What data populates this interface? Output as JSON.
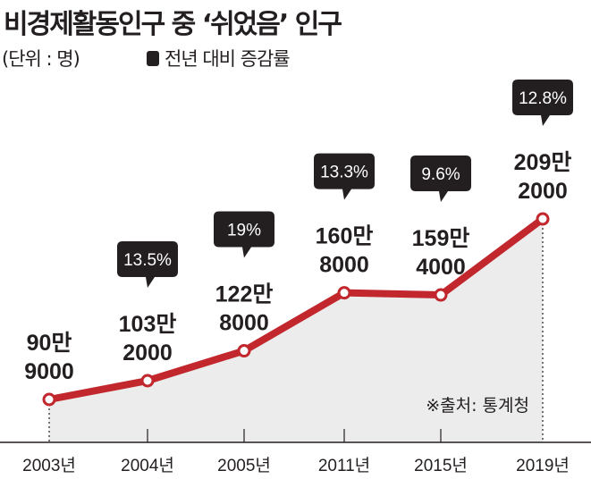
{
  "title": "비경제활동인구 중 ‘쉬었음’ 인구",
  "unit": "(단위 : 명)",
  "legend": "전년 대비 증감률",
  "source": "※출처: 통계청",
  "colors": {
    "line": "#c1272d",
    "fill": "#ececec",
    "badge": "#231f20",
    "text": "#231f20"
  },
  "chart_data": {
    "type": "line",
    "title": "비경제활동인구 중 ‘쉬었음’ 인구",
    "unit": "명",
    "categories": [
      "2003년",
      "2004년",
      "2005년",
      "2011년",
      "2015년",
      "2019년"
    ],
    "values": [
      909000,
      1032000,
      1228000,
      1608000,
      1594000,
      2092000
    ],
    "value_labels": [
      [
        "90만",
        "9000"
      ],
      [
        "103만",
        "2000"
      ],
      [
        "122만",
        "8000"
      ],
      [
        "160만",
        "8000"
      ],
      [
        "159만",
        "4000"
      ],
      [
        "209만",
        "2000"
      ]
    ],
    "change_rates": [
      null,
      "13.5%",
      "19%",
      "13.3%",
      "9.6%",
      "12.8%"
    ],
    "legend": "전년 대비 증감률",
    "ylim": [
      0,
      2300000
    ],
    "grid": false
  }
}
